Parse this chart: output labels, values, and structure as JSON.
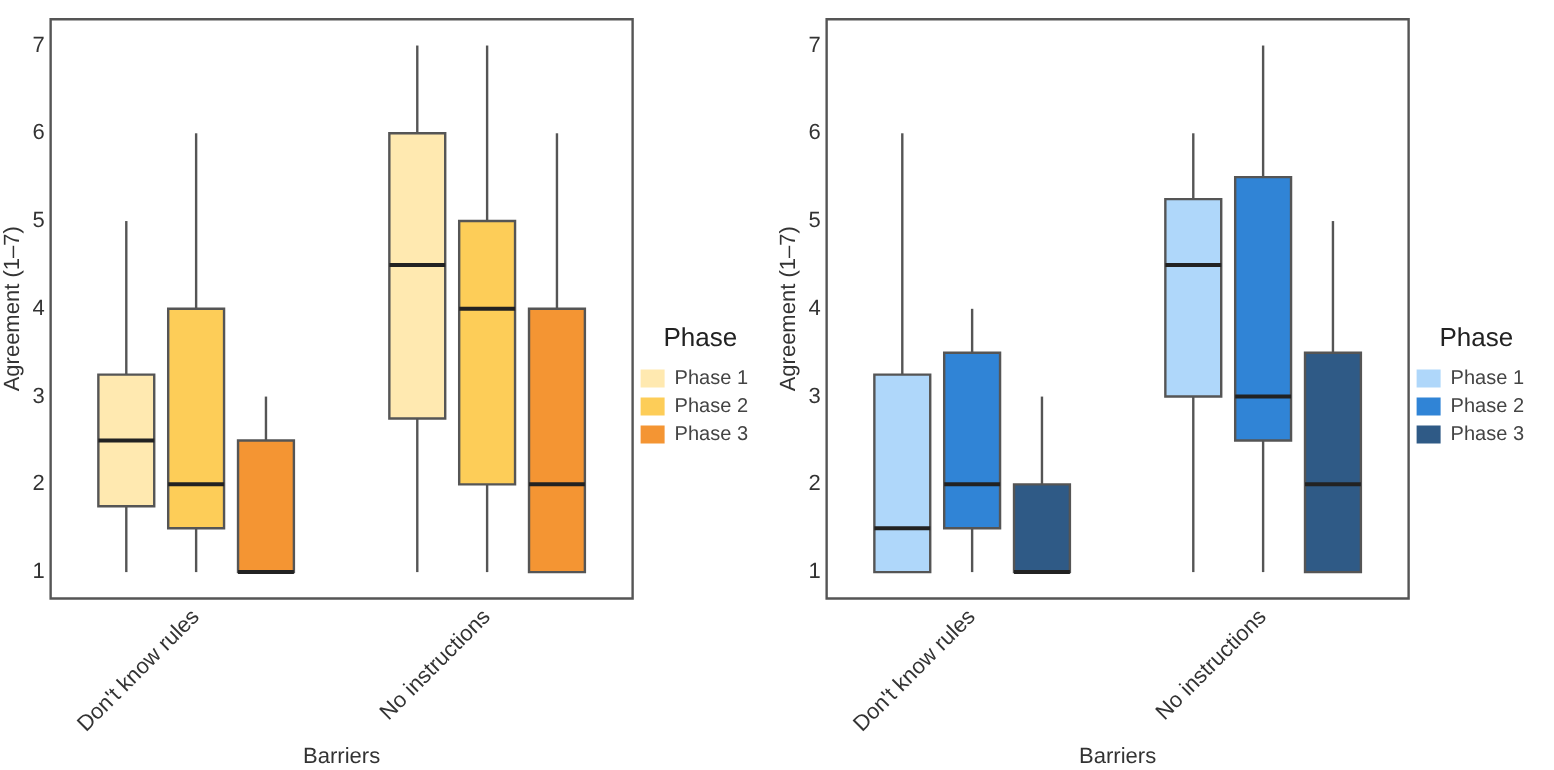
{
  "chart_data": [
    {
      "type": "box",
      "xlabel": "Barriers",
      "ylabel": "Agreement (1–7)",
      "legend_title": "Phase",
      "legend": "right",
      "grid": false,
      "categories": [
        "Don't know rules",
        "No instructions"
      ],
      "ylim": [
        0.7,
        7.3
      ],
      "yticks": [
        1,
        2,
        3,
        4,
        5,
        6,
        7
      ],
      "series": [
        {
          "name": "Phase 1",
          "color": "#ffe9b0",
          "boxes": [
            {
              "low": 1,
              "q1": 1.75,
              "median": 2.5,
              "q3": 3.25,
              "high": 5
            },
            {
              "low": 1,
              "q1": 2.75,
              "median": 4.5,
              "q3": 6,
              "high": 7
            }
          ]
        },
        {
          "name": "Phase 2",
          "color": "#fdcd58",
          "boxes": [
            {
              "low": 1,
              "q1": 1.5,
              "median": 2,
              "q3": 4,
              "high": 6
            },
            {
              "low": 1,
              "q1": 2,
              "median": 4,
              "q3": 5,
              "high": 7
            }
          ]
        },
        {
          "name": "Phase 3",
          "color": "#f49533",
          "boxes": [
            {
              "low": 1,
              "q1": 1,
              "median": 1,
              "q3": 2.5,
              "high": 3
            },
            {
              "low": 1,
              "q1": 1,
              "median": 2,
              "q3": 4,
              "high": 6
            }
          ]
        }
      ]
    },
    {
      "type": "box",
      "xlabel": "Barriers",
      "ylabel": "Agreement (1–7)",
      "legend_title": "Phase",
      "legend": "right",
      "grid": false,
      "categories": [
        "Don't know rules",
        "No instructions"
      ],
      "ylim": [
        0.7,
        7.3
      ],
      "yticks": [
        1,
        2,
        3,
        4,
        5,
        6,
        7
      ],
      "series": [
        {
          "name": "Phase 1",
          "color": "#afd7fa",
          "boxes": [
            {
              "low": 1,
              "q1": 1,
              "median": 1.5,
              "q3": 3.25,
              "high": 6
            },
            {
              "low": 1,
              "q1": 3,
              "median": 4.5,
              "q3": 5.25,
              "high": 6
            }
          ]
        },
        {
          "name": "Phase 2",
          "color": "#3084d6",
          "boxes": [
            {
              "low": 1,
              "q1": 1.5,
              "median": 2,
              "q3": 3.5,
              "high": 4
            },
            {
              "low": 1,
              "q1": 2.5,
              "median": 3,
              "q3": 5.5,
              "high": 7
            }
          ]
        },
        {
          "name": "Phase 3",
          "color": "#2f5a86",
          "boxes": [
            {
              "low": 1,
              "q1": 1,
              "median": 1,
              "q3": 2,
              "high": 3
            },
            {
              "low": 1,
              "q1": 1,
              "median": 2,
              "q3": 3.5,
              "high": 5
            }
          ]
        }
      ]
    }
  ]
}
